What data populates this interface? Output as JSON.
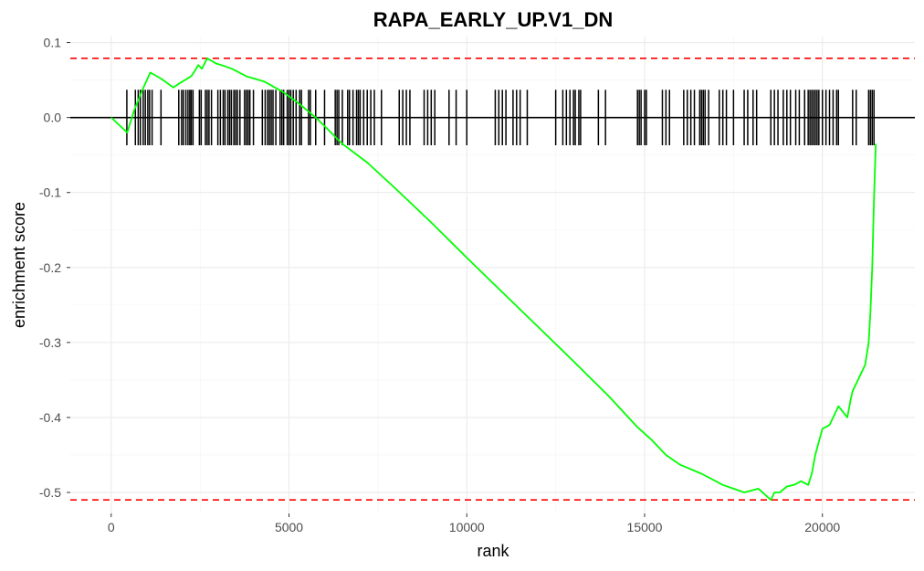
{
  "chart_data": {
    "type": "line",
    "title": "RAPA_EARLY_UP.V1_DN",
    "xlabel": "rank",
    "ylabel": "enrichment score",
    "xlim": [
      -1150,
      22600
    ],
    "ylim": [
      -0.528,
      0.108
    ],
    "x_ticks": [
      0,
      5000,
      10000,
      15000,
      20000
    ],
    "x_tick_labels": [
      "0",
      "5000",
      "10000",
      "15000",
      "20000"
    ],
    "y_ticks": [
      0.1,
      0.0,
      -0.1,
      -0.2,
      -0.3,
      -0.4,
      -0.5
    ],
    "y_tick_labels": [
      "0.1",
      "0.0",
      "-0.1",
      "-0.2",
      "-0.3",
      "-0.4",
      "-0.5"
    ],
    "grid": true,
    "colors": {
      "curve": "#00ff00",
      "threshold": "#ff0000",
      "baseline": "#000000",
      "hits": "#000000"
    },
    "thresholds": [
      0.079,
      -0.51
    ],
    "hit_range": [
      -0.037,
      0.037
    ],
    "hits": [
      440,
      680,
      760,
      820,
      900,
      960,
      1030,
      1080,
      1150,
      1400,
      1900,
      1980,
      2030,
      2100,
      2160,
      2210,
      2250,
      2300,
      2480,
      2530,
      2650,
      2700,
      2750,
      2820,
      3000,
      3070,
      3150,
      3200,
      3280,
      3330,
      3380,
      3450,
      3500,
      3550,
      3620,
      3750,
      3800,
      3850,
      3900,
      4000,
      4250,
      4330,
      4400,
      4450,
      4500,
      4550,
      4630,
      4750,
      4800,
      4850,
      4950,
      5000,
      5050,
      5120,
      5200,
      5300,
      5350,
      5550,
      5600,
      5750,
      6000,
      6300,
      6350,
      6400,
      6500,
      6650,
      6700,
      6800,
      6900,
      6950,
      7000,
      7100,
      7200,
      7300,
      7400,
      7600,
      8100,
      8200,
      8300,
      8400,
      8800,
      8900,
      9000,
      9100,
      9500,
      9700,
      10000,
      10800,
      10900,
      11000,
      11100,
      11300,
      11400,
      11500,
      11700,
      12500,
      12700,
      12800,
      12900,
      13000,
      13050,
      13150,
      13200,
      13700,
      13900,
      14800,
      14850,
      14900,
      15000,
      15050,
      15500,
      15600,
      15700,
      16100,
      16200,
      16300,
      16400,
      16550,
      16600,
      16650,
      16700,
      16800,
      17100,
      17200,
      17300,
      17500,
      17800,
      17900,
      18050,
      18150,
      18550,
      18650,
      18750,
      18900,
      19000,
      19100,
      19250,
      19350,
      19500,
      19600,
      19650,
      19700,
      19750,
      19800,
      19850,
      19900,
      20000,
      20100,
      20200,
      20300,
      20400,
      20450,
      20850,
      20950,
      21300,
      21350,
      21400,
      21450
    ],
    "x": [
      0,
      450,
      650,
      860,
      1100,
      1400,
      1750,
      1900,
      2250,
      2350,
      2450,
      2550,
      2700,
      2950,
      3100,
      3400,
      3800,
      4300,
      4800,
      5300,
      5800,
      6500,
      7200,
      8000,
      9000,
      10000,
      11000,
      12000,
      13000,
      14000,
      14800,
      15200,
      15600,
      16000,
      16600,
      17200,
      17500,
      17800,
      18200,
      18550,
      18650,
      18800,
      19000,
      19200,
      19400,
      19600,
      19700,
      19800,
      20000,
      20200,
      20450,
      20700,
      20800,
      20850,
      21200,
      21300,
      21350,
      21400,
      21450,
      21500
    ],
    "y": [
      0.0,
      -0.02,
      0.01,
      0.035,
      0.06,
      0.052,
      0.04,
      0.045,
      0.055,
      0.062,
      0.07,
      0.065,
      0.079,
      0.072,
      0.07,
      0.065,
      0.055,
      0.048,
      0.035,
      0.018,
      -0.002,
      -0.035,
      -0.06,
      -0.095,
      -0.14,
      -0.187,
      -0.233,
      -0.279,
      -0.325,
      -0.372,
      -0.413,
      -0.43,
      -0.45,
      -0.463,
      -0.475,
      -0.49,
      -0.495,
      -0.5,
      -0.495,
      -0.51,
      -0.5,
      -0.5,
      -0.492,
      -0.49,
      -0.485,
      -0.49,
      -0.475,
      -0.45,
      -0.415,
      -0.41,
      -0.385,
      -0.4,
      -0.375,
      -0.365,
      -0.33,
      -0.3,
      -0.26,
      -0.2,
      -0.11,
      -0.035
    ]
  }
}
